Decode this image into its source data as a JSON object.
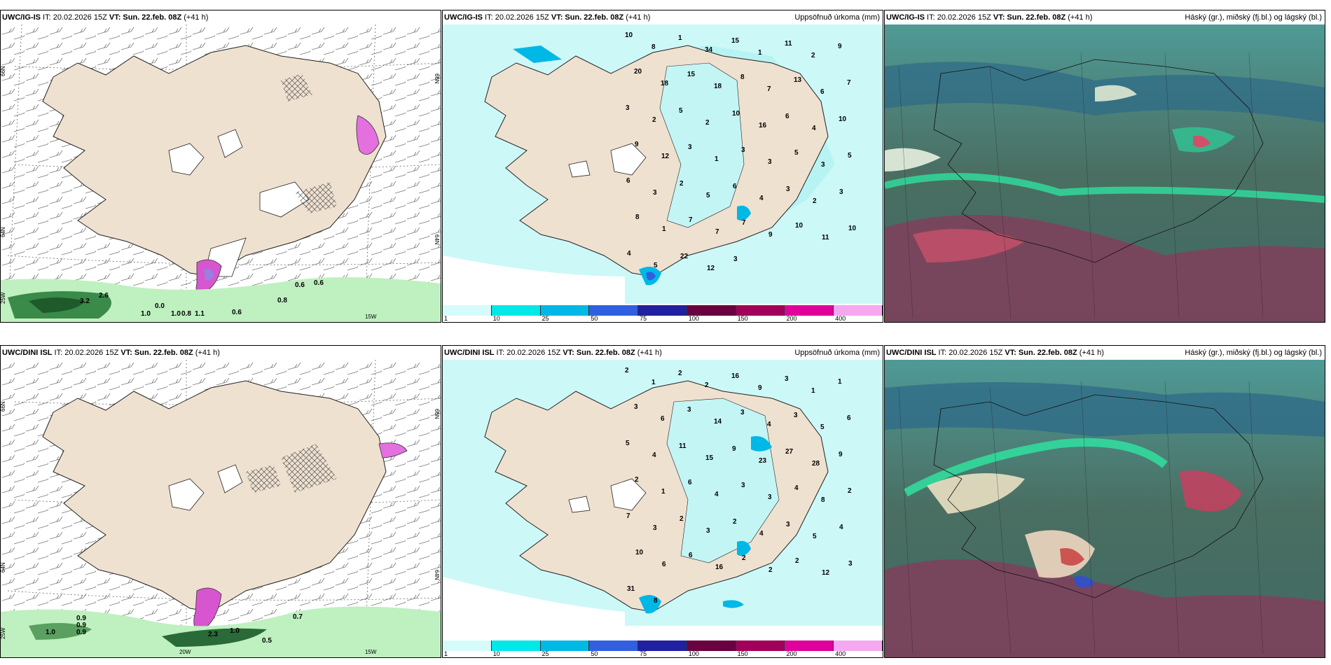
{
  "panels": {
    "p1": {
      "header_model": "UWC/IG-IS",
      "header_it": " IT: 20.02.2026 15Z ",
      "header_vt": "VT: Sun. 22.feb. 08Z",
      "header_lead": " (+41 h)",
      "values": [
        "2.6",
        "3.2",
        "0.6",
        "0.6",
        "0.8",
        "0.6",
        "1.0",
        "1.0",
        "0.0",
        "1.1",
        "0.8"
      ],
      "axis": {
        "lat1": "66N",
        "lat2": "64N",
        "lat3": "25W",
        "lon1": "15W",
        "r1": "66N",
        "r2": "64N"
      }
    },
    "p2": {
      "header_model": "UWC/IG-IS",
      "header_it": " IT: 20.02.2026 15Z ",
      "header_vt": "VT: Sun. 22.feb. 08Z",
      "header_lead": " (+41 h)",
      "title_right": "Uppsöfnuð úrkoma (mm)",
      "numbers": [
        "10",
        "8",
        "1",
        "34",
        "15",
        "1",
        "11",
        "2",
        "9",
        "20",
        "18",
        "15",
        "18",
        "8",
        "7",
        "13",
        "6",
        "7",
        "3",
        "2",
        "5",
        "2",
        "10",
        "16",
        "6",
        "4",
        "10",
        "9",
        "12",
        "3",
        "1",
        "3",
        "3",
        "5",
        "3",
        "5",
        "6",
        "3",
        "2",
        "5",
        "6",
        "4",
        "3",
        "2",
        "3",
        "8",
        "1",
        "7",
        "7",
        "7",
        "9",
        "10",
        "11",
        "10",
        "4",
        "5",
        "22",
        "12",
        "3"
      ]
    },
    "p3": {
      "header_model": "UWC/IG-IS",
      "header_it": " IT: 20.02.2026 15Z ",
      "header_vt": "VT: Sun. 22.feb. 08Z",
      "header_lead": " (+41 h)",
      "title_right": "Háský (gr.), miðský (fj.bl.) og lágský (bl.)"
    },
    "p4": {
      "header_model": "UWC/DINI ISL",
      "header_it": " IT: 20.02.2026 15Z ",
      "header_vt": "VT: Sun. 22.feb. 08Z",
      "header_lead": " (+41 h)",
      "values": [
        "0.9",
        "0.9",
        "1.0",
        "0.9",
        "1.0",
        "0.7",
        "0.5",
        "2.3"
      ],
      "axis": {
        "lat1": "66N",
        "lat2": "64N",
        "lat3": "25W",
        "lon1": "20W",
        "lon2": "15W",
        "r1": "66N",
        "r2": "64N"
      }
    },
    "p5": {
      "header_model": "UWC/DINI ISL",
      "header_it": " IT: 20.02.2026 15Z ",
      "header_vt": "VT: Sun. 22.feb. 08Z",
      "header_lead": " (+41 h)",
      "title_right": "Uppsöfnuð úrkoma (mm)",
      "numbers": [
        "2",
        "1",
        "2",
        "2",
        "16",
        "9",
        "3",
        "1",
        "1",
        "3",
        "6",
        "3",
        "14",
        "3",
        "4",
        "3",
        "5",
        "6",
        "5",
        "4",
        "11",
        "15",
        "9",
        "23",
        "27",
        "28",
        "9",
        "2",
        "1",
        "6",
        "4",
        "3",
        "3",
        "4",
        "8",
        "2",
        "7",
        "3",
        "2",
        "3",
        "2",
        "4",
        "3",
        "5",
        "4",
        "10",
        "6",
        "6",
        "16",
        "2",
        "2",
        "2",
        "12",
        "3",
        "31",
        "8"
      ]
    },
    "p6": {
      "header_model": "UWC/DINI ISL",
      "header_it": " IT: 20.02.2026 15Z ",
      "header_vt": "VT: Sun. 22.feb. 08Z",
      "header_lead": " (+41 h)",
      "title_right": "Háský (gr.), miðský (fj.bl.) og lágský (bl.)"
    }
  },
  "legend": {
    "ticks": [
      "1",
      "10",
      "25",
      "50",
      "75",
      "100",
      "150",
      "200",
      "400"
    ],
    "colors": [
      "#d6fbfb",
      "#00e8e8",
      "#00b8e6",
      "#3060e0",
      "#2020a0",
      "#6a0040",
      "#a0005a",
      "#e0009a",
      "#f5a8f0"
    ]
  }
}
